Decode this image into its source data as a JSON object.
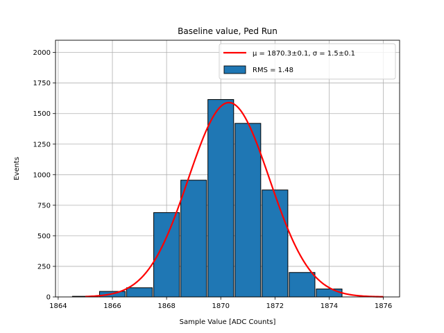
{
  "chart_data": {
    "type": "bar",
    "title": "Baseline value, Ped Run",
    "xlabel": "Sample Value [ADC Counts]",
    "ylabel": "Events",
    "xlim": [
      1863.9,
      1876.6
    ],
    "ylim": [
      0,
      2100
    ],
    "xticks": [
      1864,
      1866,
      1868,
      1870,
      1872,
      1874,
      1876
    ],
    "yticks": [
      0,
      250,
      500,
      750,
      1000,
      1250,
      1500,
      1750,
      2000
    ],
    "grid": true,
    "legend_position": "top-right",
    "bin_width": 0.95,
    "bins": [
      {
        "x": 1865,
        "value": 5
      },
      {
        "x": 1866,
        "value": 45
      },
      {
        "x": 1867,
        "value": 75
      },
      {
        "x": 1868,
        "value": 690
      },
      {
        "x": 1869,
        "value": 955
      },
      {
        "x": 1870,
        "value": 1615
      },
      {
        "x": 1871,
        "value": 1420
      },
      {
        "x": 1872,
        "value": 875
      },
      {
        "x": 1873,
        "value": 200
      },
      {
        "x": 1874,
        "value": 65
      },
      {
        "x": 1875,
        "value": 0
      }
    ],
    "fit": {
      "label": "μ = 1870.3±0.1, σ = 1.5±0.1",
      "mu": 1870.3,
      "sigma": 1.5,
      "amplitude": 1590,
      "x_range": [
        1865,
        1876
      ]
    },
    "hist_label": "RMS = 1.48",
    "colors": {
      "bar_fill": "#1f77b4",
      "bar_edge": "#000000",
      "fit_line": "#ff0000",
      "grid": "#b0b0b0"
    }
  }
}
